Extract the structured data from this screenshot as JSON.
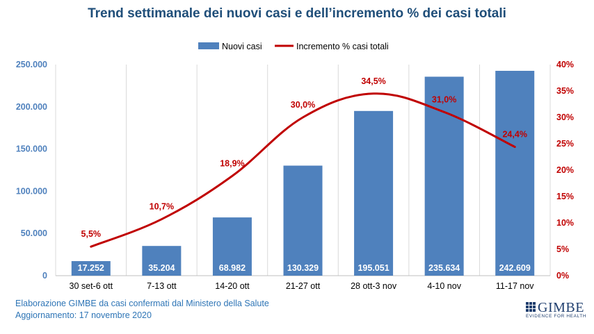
{
  "colors": {
    "title": "#1f4e79",
    "bar": "#4f81bd",
    "line": "#c00000",
    "left_axis": "#4f81bd",
    "right_axis": "#c00000",
    "grid": "#d9d9d9",
    "footer": "#2e75b6",
    "logo": "#1f3e6e"
  },
  "chart_data": {
    "type": "bar",
    "title": "Trend settimanale dei nuovi casi e dell’incremento % dei casi totali",
    "categories": [
      "30 set-6 ott",
      "7-13 ott",
      "14-20 ott",
      "21-27 ott",
      "28 ott-3 nov",
      "4-10 nov",
      "11-17 nov"
    ],
    "series": [
      {
        "name": "Nuovi casi",
        "type": "bar",
        "axis": "left",
        "values": [
          17252,
          35204,
          68982,
          130329,
          195051,
          235634,
          242609
        ],
        "labels": [
          "17.252",
          "35.204",
          "68.982",
          "130.329",
          "195.051",
          "235.634",
          "242.609"
        ]
      },
      {
        "name": "Incremento % casi totali",
        "type": "line",
        "axis": "right",
        "values": [
          5.5,
          10.7,
          18.9,
          30.0,
          34.5,
          31.0,
          24.4
        ],
        "labels": [
          "5,5%",
          "10,7%",
          "18,9%",
          "30,0%",
          "34,5%",
          "31,0%",
          "24,4%"
        ]
      }
    ],
    "y_left": {
      "min": 0,
      "max": 250000,
      "ticks": [
        0,
        50000,
        100000,
        150000,
        200000,
        250000
      ],
      "tick_labels": [
        "0",
        "50.000",
        "100.000",
        "150.000",
        "200.000",
        "250.000"
      ]
    },
    "y_right": {
      "min": 0,
      "max": 40,
      "ticks": [
        0,
        5,
        10,
        15,
        20,
        25,
        30,
        35,
        40
      ],
      "tick_labels": [
        "0%",
        "5%",
        "10%",
        "15%",
        "20%",
        "25%",
        "30%",
        "35%",
        "40%"
      ]
    },
    "grid": "vertical",
    "legend_position": "top"
  },
  "footer": {
    "line1": "Elaborazione GIMBE da casi confermati dal Ministero della Salute",
    "line2": "Aggiornamento: 17 novembre 2020"
  },
  "logo": {
    "name": "GIMBE",
    "tagline": "EVIDENCE FOR HEALTH",
    "icon": "gimbe-grid-icon"
  }
}
